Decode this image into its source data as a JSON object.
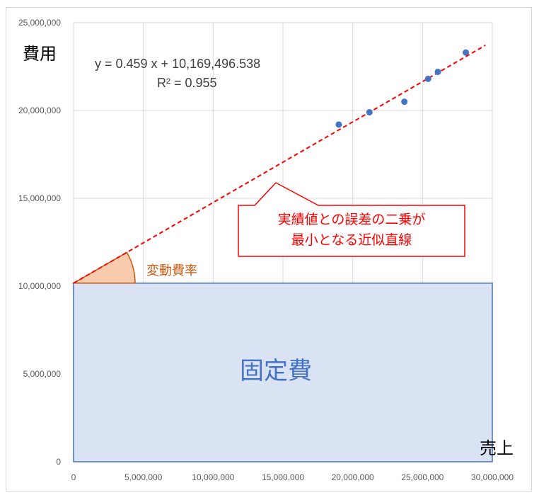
{
  "chart_data": {
    "type": "scatter",
    "x_ticks": [
      "0",
      "5,000,000",
      "10,000,000",
      "15,000,000",
      "20,000,000",
      "25,000,000",
      "30,000,000"
    ],
    "y_ticks": [
      "0",
      "5,000,000",
      "10,000,000",
      "15,000,000",
      "20,000,000",
      "25,000,000"
    ],
    "xlim": [
      0,
      30000000
    ],
    "ylim": [
      0,
      25000000
    ],
    "grid": true,
    "xlabel": "売上",
    "ylabel": "費用",
    "points": [
      {
        "x": 19000000,
        "y": 19200000
      },
      {
        "x": 21200000,
        "y": 19900000
      },
      {
        "x": 23700000,
        "y": 20500000
      },
      {
        "x": 25400000,
        "y": 21800000
      },
      {
        "x": 26100000,
        "y": 22200000
      },
      {
        "x": 28100000,
        "y": 23300000
      }
    ],
    "trendline": {
      "slope": 0.459,
      "intercept": 10169496.538,
      "x_range": [
        0,
        29500000
      ],
      "equation_text": "y = 0.459 x + 10,169,496.538",
      "r2_text": "R² = 0.955"
    },
    "annotations": {
      "callout_line1": "実績値との誤差の二乗が",
      "callout_line2": "最小となる近似直線",
      "rate_label": "変動費率",
      "fixed_cost_label": "固定費"
    },
    "colors": {
      "points": "#4472c4",
      "trendline": "#ff0000",
      "fixed_fill": "#dae3f3",
      "fixed_border": "#4472c4",
      "angle_fill": "#f8cbad",
      "angle_border": "#c55a11",
      "grid": "#d9d9d9"
    }
  }
}
